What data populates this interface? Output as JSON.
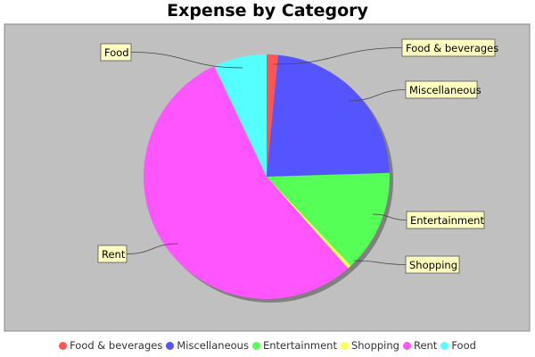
{
  "chart_data": {
    "type": "pie",
    "title": "Expense by Category",
    "slices": [
      {
        "label": "Food & beverages",
        "value": 1.5,
        "color": "#ff5555"
      },
      {
        "label": "Miscellaneous",
        "value": 23.0,
        "color": "#5555ff"
      },
      {
        "label": "Entertainment",
        "value": 13.5,
        "color": "#55ff55"
      },
      {
        "label": "Shopping",
        "value": 0.5,
        "color": "#ffff55"
      },
      {
        "label": "Rent",
        "value": 54.5,
        "color": "#ff55ff"
      },
      {
        "label": "Food",
        "value": 7.0,
        "color": "#55ffff"
      }
    ],
    "legend_position": "bottom",
    "plot_background": "#c0c0c0",
    "label_box_color": "#ffffc0"
  }
}
